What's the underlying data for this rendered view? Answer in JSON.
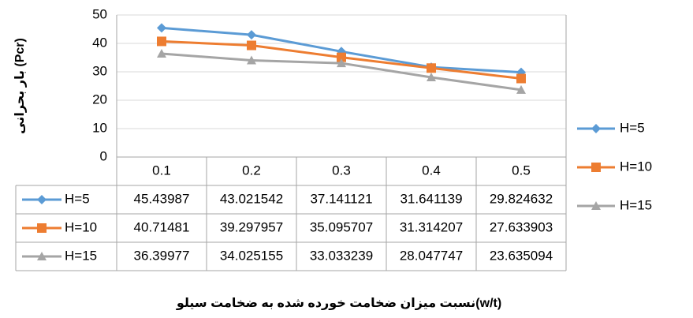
{
  "chart_data": {
    "type": "line",
    "y_axis_label": "بار بحرانی (Pcr)",
    "x_axis_label": "نسبت میزان ضخامت خورده شده به ضخامت سیلو(w/t)",
    "categories": [
      "0.1",
      "0.2",
      "0.3",
      "0.4",
      "0.5"
    ],
    "series": [
      {
        "name": "H=5",
        "color": "#5b9bd5",
        "marker": "diamond",
        "values": [
          45.43987,
          43.021542,
          37.141121,
          31.641139,
          29.824632
        ]
      },
      {
        "name": "H=10",
        "color": "#ed7d31",
        "marker": "square",
        "values": [
          40.71481,
          39.297957,
          35.095707,
          31.314207,
          27.633903
        ]
      },
      {
        "name": "H=15",
        "color": "#a5a5a5",
        "marker": "triangle",
        "values": [
          36.39977,
          34.025155,
          33.033239,
          28.047747,
          23.635094
        ]
      }
    ],
    "ylim": [
      0,
      50
    ],
    "yticks": [
      0,
      10,
      20,
      30,
      40,
      50
    ],
    "grid": true,
    "legend": "right",
    "data_table": true
  }
}
